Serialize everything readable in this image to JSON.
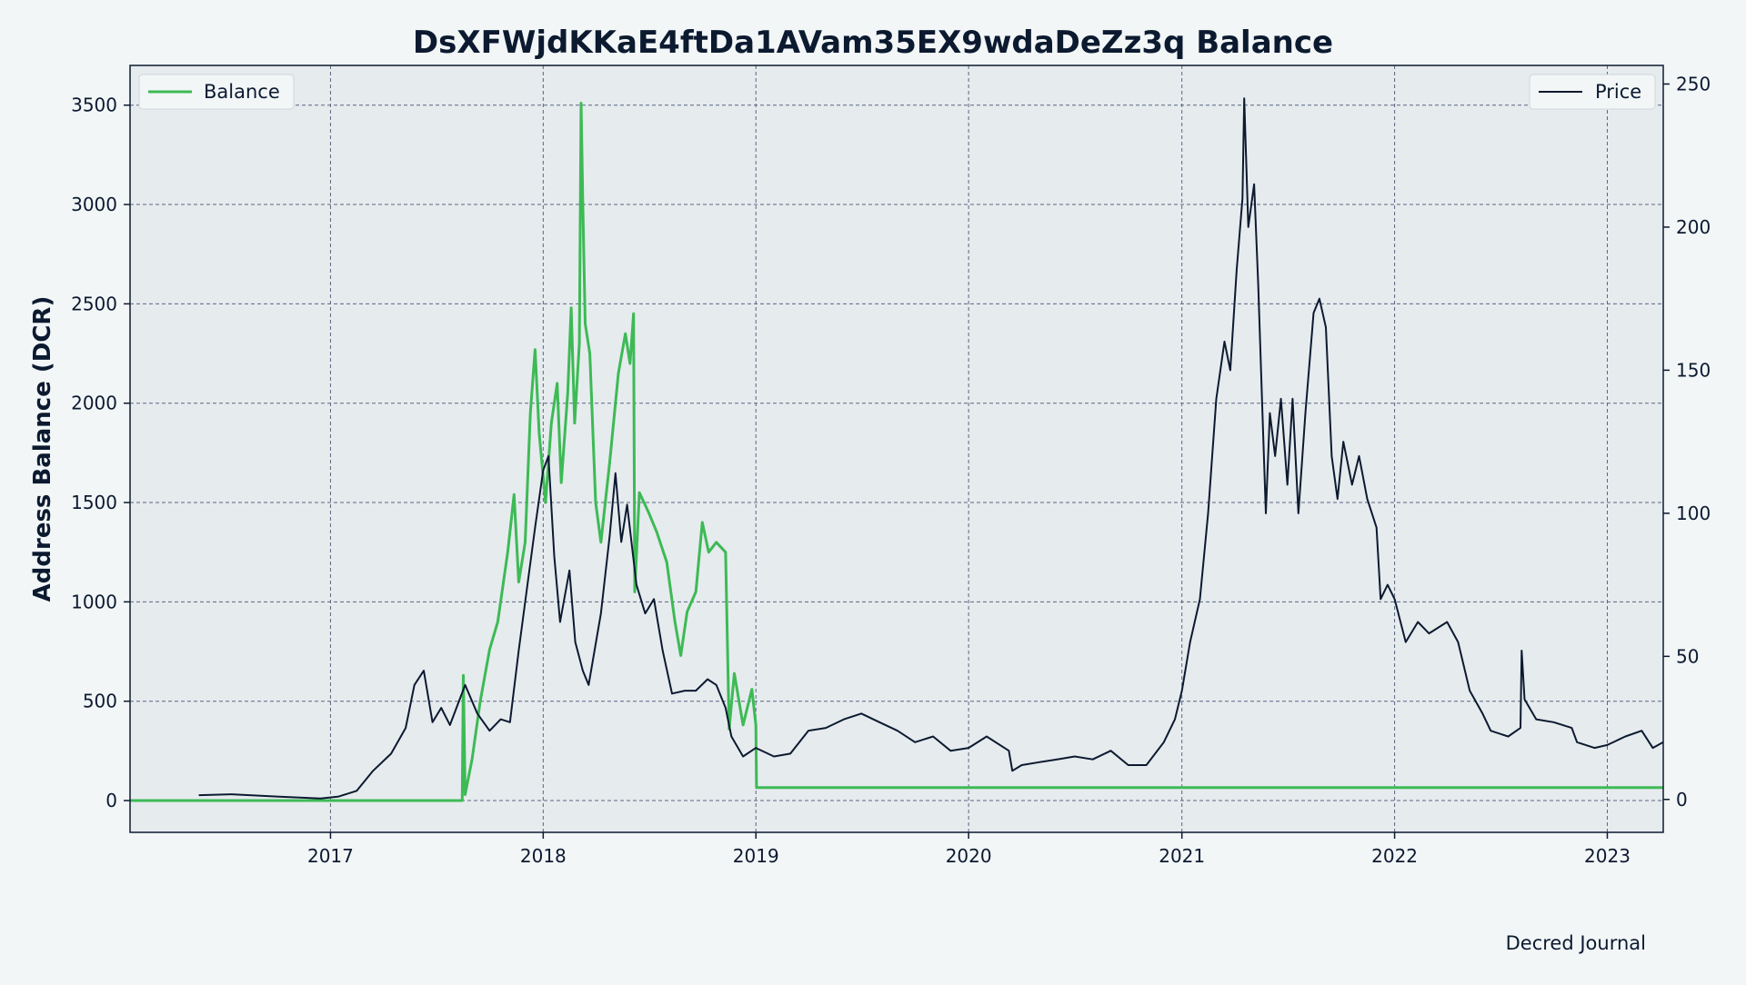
{
  "chart_data": {
    "type": "line",
    "title": "DsXFWjdKKaE4ftDa1AVam35EX9wdaDeZz3q Balance",
    "ylabel": "Address Balance (DCR)",
    "y2label": "",
    "xlabel": "",
    "credit": "Decred Journal",
    "xlim": [
      "2016-01-23",
      "2023-04-07"
    ],
    "ylim": [
      -160,
      3700
    ],
    "y2lim": [
      -11.5,
      256.5
    ],
    "x_ticks": [
      "2017",
      "2018",
      "2019",
      "2020",
      "2021",
      "2022",
      "2023"
    ],
    "y_ticks": [
      0,
      500,
      1000,
      1500,
      2000,
      2500,
      3000,
      3500
    ],
    "y2_ticks": [
      0,
      50,
      100,
      150,
      200,
      250
    ],
    "grid": true,
    "legend_left_position": "top-left",
    "legend_right_position": "top-right",
    "colors": {
      "balance": "#3dba55",
      "price": "#0c1a30",
      "plot_bg": "#e6ebee",
      "page_bg": "#f2f6f7",
      "grid": "#5a6680"
    },
    "series": [
      {
        "name": "Balance",
        "axis": "left",
        "color": "#3dba55",
        "points": [
          [
            "2016-01-23",
            0
          ],
          [
            "2017-08-15",
            0
          ],
          [
            "2017-08-17",
            630
          ],
          [
            "2017-08-20",
            30
          ],
          [
            "2017-09-01",
            210
          ],
          [
            "2017-09-15",
            500
          ],
          [
            "2017-10-01",
            760
          ],
          [
            "2017-10-15",
            900
          ],
          [
            "2017-11-01",
            1250
          ],
          [
            "2017-11-12",
            1540
          ],
          [
            "2017-11-20",
            1100
          ],
          [
            "2017-12-01",
            1300
          ],
          [
            "2017-12-10",
            1950
          ],
          [
            "2017-12-18",
            2270
          ],
          [
            "2017-12-25",
            1850
          ],
          [
            "2018-01-05",
            1500
          ],
          [
            "2018-01-15",
            1900
          ],
          [
            "2018-01-25",
            2100
          ],
          [
            "2018-02-01",
            1600
          ],
          [
            "2018-02-12",
            2050
          ],
          [
            "2018-02-18",
            2480
          ],
          [
            "2018-02-24",
            1900
          ],
          [
            "2018-03-04",
            2300
          ],
          [
            "2018-03-07",
            3510
          ],
          [
            "2018-03-10",
            3000
          ],
          [
            "2018-03-14",
            2400
          ],
          [
            "2018-03-22",
            2250
          ],
          [
            "2018-04-01",
            1500
          ],
          [
            "2018-04-10",
            1300
          ],
          [
            "2018-04-25",
            1700
          ],
          [
            "2018-05-10",
            2150
          ],
          [
            "2018-05-22",
            2350
          ],
          [
            "2018-05-30",
            2200
          ],
          [
            "2018-06-05",
            2450
          ],
          [
            "2018-06-07",
            1050
          ],
          [
            "2018-06-15",
            1550
          ],
          [
            "2018-07-01",
            1450
          ],
          [
            "2018-07-15",
            1350
          ],
          [
            "2018-08-01",
            1200
          ],
          [
            "2018-08-15",
            900
          ],
          [
            "2018-08-25",
            730
          ],
          [
            "2018-09-05",
            950
          ],
          [
            "2018-09-20",
            1050
          ],
          [
            "2018-10-01",
            1400
          ],
          [
            "2018-10-12",
            1250
          ],
          [
            "2018-10-25",
            1300
          ],
          [
            "2018-11-10",
            1250
          ],
          [
            "2018-11-16",
            360
          ],
          [
            "2018-11-25",
            640
          ],
          [
            "2018-12-10",
            380
          ],
          [
            "2018-12-25",
            560
          ],
          [
            "2019-01-01",
            380
          ],
          [
            "2019-01-02",
            65
          ],
          [
            "2023-04-07",
            65
          ]
        ]
      },
      {
        "name": "Price",
        "axis": "right",
        "color": "#0c1a30",
        "points": [
          [
            "2016-05-20",
            1.5
          ],
          [
            "2016-07-15",
            1.8
          ],
          [
            "2016-10-01",
            1.0
          ],
          [
            "2016-12-15",
            0.3
          ],
          [
            "2017-01-15",
            1.0
          ],
          [
            "2017-02-15",
            3.0
          ],
          [
            "2017-03-15",
            10
          ],
          [
            "2017-04-15",
            16
          ],
          [
            "2017-05-10",
            25
          ],
          [
            "2017-05-25",
            40
          ],
          [
            "2017-06-10",
            45
          ],
          [
            "2017-06-25",
            27
          ],
          [
            "2017-07-10",
            32
          ],
          [
            "2017-07-25",
            26
          ],
          [
            "2017-08-20",
            40
          ],
          [
            "2017-09-10",
            30
          ],
          [
            "2017-10-01",
            24
          ],
          [
            "2017-10-20",
            28
          ],
          [
            "2017-11-05",
            27
          ],
          [
            "2017-11-20",
            52
          ],
          [
            "2017-12-05",
            75
          ],
          [
            "2017-12-18",
            95
          ],
          [
            "2018-01-01",
            115
          ],
          [
            "2018-01-10",
            120
          ],
          [
            "2018-01-20",
            85
          ],
          [
            "2018-01-30",
            62
          ],
          [
            "2018-02-15",
            80
          ],
          [
            "2018-02-25",
            55
          ],
          [
            "2018-03-10",
            45
          ],
          [
            "2018-03-20",
            40
          ],
          [
            "2018-04-10",
            65
          ],
          [
            "2018-04-25",
            92
          ],
          [
            "2018-05-05",
            114
          ],
          [
            "2018-05-15",
            90
          ],
          [
            "2018-05-25",
            103
          ],
          [
            "2018-06-10",
            75
          ],
          [
            "2018-06-25",
            65
          ],
          [
            "2018-07-10",
            70
          ],
          [
            "2018-07-25",
            52
          ],
          [
            "2018-08-10",
            37
          ],
          [
            "2018-09-01",
            38
          ],
          [
            "2018-09-20",
            38
          ],
          [
            "2018-10-10",
            42
          ],
          [
            "2018-10-25",
            40
          ],
          [
            "2018-11-10",
            32
          ],
          [
            "2018-11-20",
            22
          ],
          [
            "2018-12-10",
            15
          ],
          [
            "2019-01-01",
            18
          ],
          [
            "2019-02-01",
            15
          ],
          [
            "2019-03-01",
            16
          ],
          [
            "2019-04-01",
            24
          ],
          [
            "2019-05-01",
            25
          ],
          [
            "2019-06-01",
            28
          ],
          [
            "2019-07-01",
            30
          ],
          [
            "2019-08-01",
            27
          ],
          [
            "2019-09-01",
            24
          ],
          [
            "2019-10-01",
            20
          ],
          [
            "2019-11-01",
            22
          ],
          [
            "2019-12-01",
            17
          ],
          [
            "2020-01-01",
            18
          ],
          [
            "2020-02-01",
            22
          ],
          [
            "2020-03-10",
            17
          ],
          [
            "2020-03-16",
            10
          ],
          [
            "2020-04-01",
            12
          ],
          [
            "2020-05-01",
            13
          ],
          [
            "2020-06-01",
            14
          ],
          [
            "2020-07-01",
            15
          ],
          [
            "2020-08-01",
            14
          ],
          [
            "2020-09-01",
            17
          ],
          [
            "2020-10-01",
            12
          ],
          [
            "2020-11-01",
            12
          ],
          [
            "2020-12-01",
            20
          ],
          [
            "2020-12-20",
            28
          ],
          [
            "2021-01-01",
            38
          ],
          [
            "2021-01-15",
            55
          ],
          [
            "2021-02-01",
            70
          ],
          [
            "2021-02-15",
            100
          ],
          [
            "2021-03-01",
            140
          ],
          [
            "2021-03-15",
            160
          ],
          [
            "2021-03-25",
            150
          ],
          [
            "2021-04-05",
            185
          ],
          [
            "2021-04-15",
            210
          ],
          [
            "2021-04-18",
            245
          ],
          [
            "2021-04-25",
            200
          ],
          [
            "2021-05-05",
            215
          ],
          [
            "2021-05-12",
            180
          ],
          [
            "2021-05-20",
            130
          ],
          [
            "2021-05-25",
            100
          ],
          [
            "2021-06-01",
            135
          ],
          [
            "2021-06-10",
            120
          ],
          [
            "2021-06-20",
            140
          ],
          [
            "2021-07-01",
            110
          ],
          [
            "2021-07-10",
            140
          ],
          [
            "2021-07-20",
            100
          ],
          [
            "2021-08-01",
            135
          ],
          [
            "2021-08-15",
            170
          ],
          [
            "2021-08-25",
            175
          ],
          [
            "2021-09-05",
            165
          ],
          [
            "2021-09-15",
            120
          ],
          [
            "2021-09-25",
            105
          ],
          [
            "2021-10-05",
            125
          ],
          [
            "2021-10-20",
            110
          ],
          [
            "2021-11-01",
            120
          ],
          [
            "2021-11-15",
            105
          ],
          [
            "2021-12-01",
            95
          ],
          [
            "2021-12-08",
            70
          ],
          [
            "2021-12-20",
            75
          ],
          [
            "2022-01-01",
            70
          ],
          [
            "2022-01-20",
            55
          ],
          [
            "2022-02-10",
            62
          ],
          [
            "2022-03-01",
            58
          ],
          [
            "2022-04-01",
            62
          ],
          [
            "2022-04-20",
            55
          ],
          [
            "2022-05-10",
            38
          ],
          [
            "2022-06-01",
            30
          ],
          [
            "2022-06-15",
            24
          ],
          [
            "2022-07-15",
            22
          ],
          [
            "2022-08-05",
            25
          ],
          [
            "2022-08-07",
            52
          ],
          [
            "2022-08-12",
            35
          ],
          [
            "2022-09-01",
            28
          ],
          [
            "2022-10-01",
            27
          ],
          [
            "2022-11-01",
            25
          ],
          [
            "2022-11-10",
            20
          ],
          [
            "2022-12-10",
            18
          ],
          [
            "2023-01-01",
            19
          ],
          [
            "2023-02-01",
            22
          ],
          [
            "2023-03-01",
            24
          ],
          [
            "2023-03-20",
            18
          ],
          [
            "2023-04-07",
            20
          ]
        ]
      }
    ]
  }
}
